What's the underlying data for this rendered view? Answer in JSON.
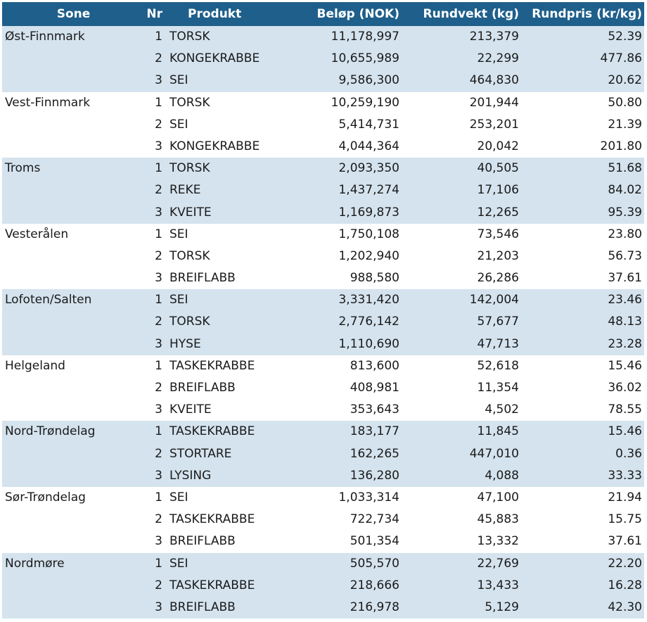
{
  "header": {
    "sone": "Sone",
    "nr": "Nr",
    "produkt": "Produkt",
    "belop": "Beløp (NOK)",
    "rundvekt": "Rundvekt (kg)",
    "rundpris": "Rundpris (kr/kg)"
  },
  "zones": [
    {
      "name": "Øst-Finnmark",
      "shaded": true,
      "rows": [
        {
          "nr": "1",
          "produkt": "TORSK",
          "belop": "11,178,997",
          "rundvekt": "213,379",
          "rundpris": "52.39"
        },
        {
          "nr": "2",
          "produkt": "KONGEKRABBE",
          "belop": "10,655,989",
          "rundvekt": "22,299",
          "rundpris": "477.86"
        },
        {
          "nr": "3",
          "produkt": "SEI",
          "belop": "9,586,300",
          "rundvekt": "464,830",
          "rundpris": "20.62"
        }
      ]
    },
    {
      "name": "Vest-Finnmark",
      "shaded": false,
      "rows": [
        {
          "nr": "1",
          "produkt": "TORSK",
          "belop": "10,259,190",
          "rundvekt": "201,944",
          "rundpris": "50.80"
        },
        {
          "nr": "2",
          "produkt": "SEI",
          "belop": "5,414,731",
          "rundvekt": "253,201",
          "rundpris": "21.39"
        },
        {
          "nr": "3",
          "produkt": "KONGEKRABBE",
          "belop": "4,044,364",
          "rundvekt": "20,042",
          "rundpris": "201.80"
        }
      ]
    },
    {
      "name": "Troms",
      "shaded": true,
      "rows": [
        {
          "nr": "1",
          "produkt": "TORSK",
          "belop": "2,093,350",
          "rundvekt": "40,505",
          "rundpris": "51.68"
        },
        {
          "nr": "2",
          "produkt": "REKE",
          "belop": "1,437,274",
          "rundvekt": "17,106",
          "rundpris": "84.02"
        },
        {
          "nr": "3",
          "produkt": "KVEITE",
          "belop": "1,169,873",
          "rundvekt": "12,265",
          "rundpris": "95.39"
        }
      ]
    },
    {
      "name": "Vesterålen",
      "shaded": false,
      "rows": [
        {
          "nr": "1",
          "produkt": "SEI",
          "belop": "1,750,108",
          "rundvekt": "73,546",
          "rundpris": "23.80"
        },
        {
          "nr": "2",
          "produkt": "TORSK",
          "belop": "1,202,940",
          "rundvekt": "21,203",
          "rundpris": "56.73"
        },
        {
          "nr": "3",
          "produkt": "BREIFLABB",
          "belop": "988,580",
          "rundvekt": "26,286",
          "rundpris": "37.61"
        }
      ]
    },
    {
      "name": "Lofoten/Salten",
      "shaded": true,
      "rows": [
        {
          "nr": "1",
          "produkt": "SEI",
          "belop": "3,331,420",
          "rundvekt": "142,004",
          "rundpris": "23.46"
        },
        {
          "nr": "2",
          "produkt": "TORSK",
          "belop": "2,776,142",
          "rundvekt": "57,677",
          "rundpris": "48.13"
        },
        {
          "nr": "3",
          "produkt": "HYSE",
          "belop": "1,110,690",
          "rundvekt": "47,713",
          "rundpris": "23.28"
        }
      ]
    },
    {
      "name": "Helgeland",
      "shaded": false,
      "rows": [
        {
          "nr": "1",
          "produkt": "TASKEKRABBE",
          "belop": "813,600",
          "rundvekt": "52,618",
          "rundpris": "15.46"
        },
        {
          "nr": "2",
          "produkt": "BREIFLABB",
          "belop": "408,981",
          "rundvekt": "11,354",
          "rundpris": "36.02"
        },
        {
          "nr": "3",
          "produkt": "KVEITE",
          "belop": "353,643",
          "rundvekt": "4,502",
          "rundpris": "78.55"
        }
      ]
    },
    {
      "name": "Nord-Trøndelag",
      "shaded": true,
      "rows": [
        {
          "nr": "1",
          "produkt": "TASKEKRABBE",
          "belop": "183,177",
          "rundvekt": "11,845",
          "rundpris": "15.46"
        },
        {
          "nr": "2",
          "produkt": "STORTARE",
          "belop": "162,265",
          "rundvekt": "447,010",
          "rundpris": "0.36"
        },
        {
          "nr": "3",
          "produkt": "LYSING",
          "belop": "136,280",
          "rundvekt": "4,088",
          "rundpris": "33.33"
        }
      ]
    },
    {
      "name": "Sør-Trøndelag",
      "shaded": false,
      "rows": [
        {
          "nr": "1",
          "produkt": "SEI",
          "belop": "1,033,314",
          "rundvekt": "47,100",
          "rundpris": "21.94"
        },
        {
          "nr": "2",
          "produkt": "TASKEKRABBE",
          "belop": "722,734",
          "rundvekt": "45,883",
          "rundpris": "15.75"
        },
        {
          "nr": "3",
          "produkt": "BREIFLABB",
          "belop": "501,354",
          "rundvekt": "13,332",
          "rundpris": "37.61"
        }
      ]
    },
    {
      "name": "Nordmøre",
      "shaded": true,
      "rows": [
        {
          "nr": "1",
          "produkt": "SEI",
          "belop": "505,570",
          "rundvekt": "22,769",
          "rundpris": "22.20"
        },
        {
          "nr": "2",
          "produkt": "TASKEKRABBE",
          "belop": "218,666",
          "rundvekt": "13,433",
          "rundpris": "16.28"
        },
        {
          "nr": "3",
          "produkt": "BREIFLABB",
          "belop": "216,978",
          "rundvekt": "5,129",
          "rundpris": "42.30"
        }
      ]
    }
  ]
}
